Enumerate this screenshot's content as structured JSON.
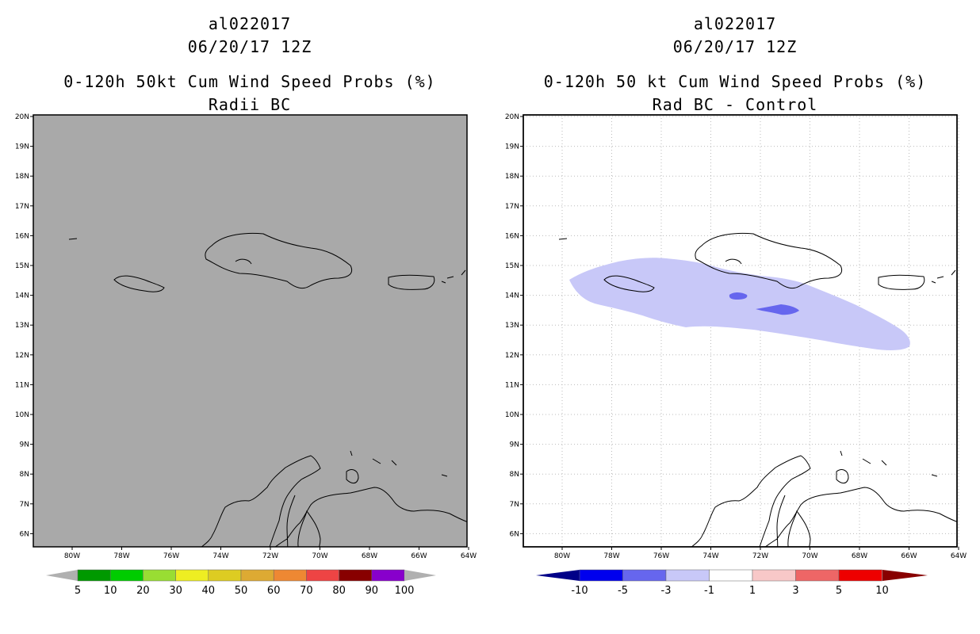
{
  "left_panel": {
    "title_line1": "al022017",
    "title_line2": "06/20/17 12Z",
    "title_line3": "0-120h 50kt Cum Wind Speed Probs (%)",
    "title_line4": "Radii BC",
    "background_color": "#a9a9a9",
    "colorbar": {
      "labels": [
        "5",
        "10",
        "20",
        "30",
        "40",
        "50",
        "60",
        "70",
        "80",
        "90",
        "100"
      ],
      "colors": [
        "#009900",
        "#00cc00",
        "#99dd33",
        "#eeee22",
        "#ddcc22",
        "#ddaa33",
        "#ee8833",
        "#ee4444",
        "#880000",
        "#8800cc"
      ]
    }
  },
  "right_panel": {
    "title_line1": "al022017",
    "title_line2": "06/20/17 12Z",
    "title_line3": "0-120h 50 kt Cum Wind Speed Probs (%)",
    "title_line4": "Rad BC - Control",
    "background_color": "#ffffff",
    "colorbar": {
      "labels": [
        "-10",
        "-5",
        "-3",
        "-1",
        "1",
        "3",
        "5",
        "10"
      ],
      "colors": [
        "#000088",
        "#0000ee",
        "#6666ee",
        "#c8c8f8",
        "#ffffff",
        "#f8c8c8",
        "#ee6666",
        "#ee0000",
        "#880000"
      ]
    }
  },
  "map": {
    "lat_labels": [
      "20N",
      "19N",
      "18N",
      "17N",
      "16N",
      "15N",
      "14N",
      "13N",
      "12N",
      "11N",
      "10N",
      "9N",
      "8N",
      "7N",
      "6N"
    ],
    "lon_labels": [
      "80W",
      "78W",
      "76W",
      "74W",
      "72W",
      "70W",
      "68W",
      "66W",
      "64W"
    ]
  }
}
